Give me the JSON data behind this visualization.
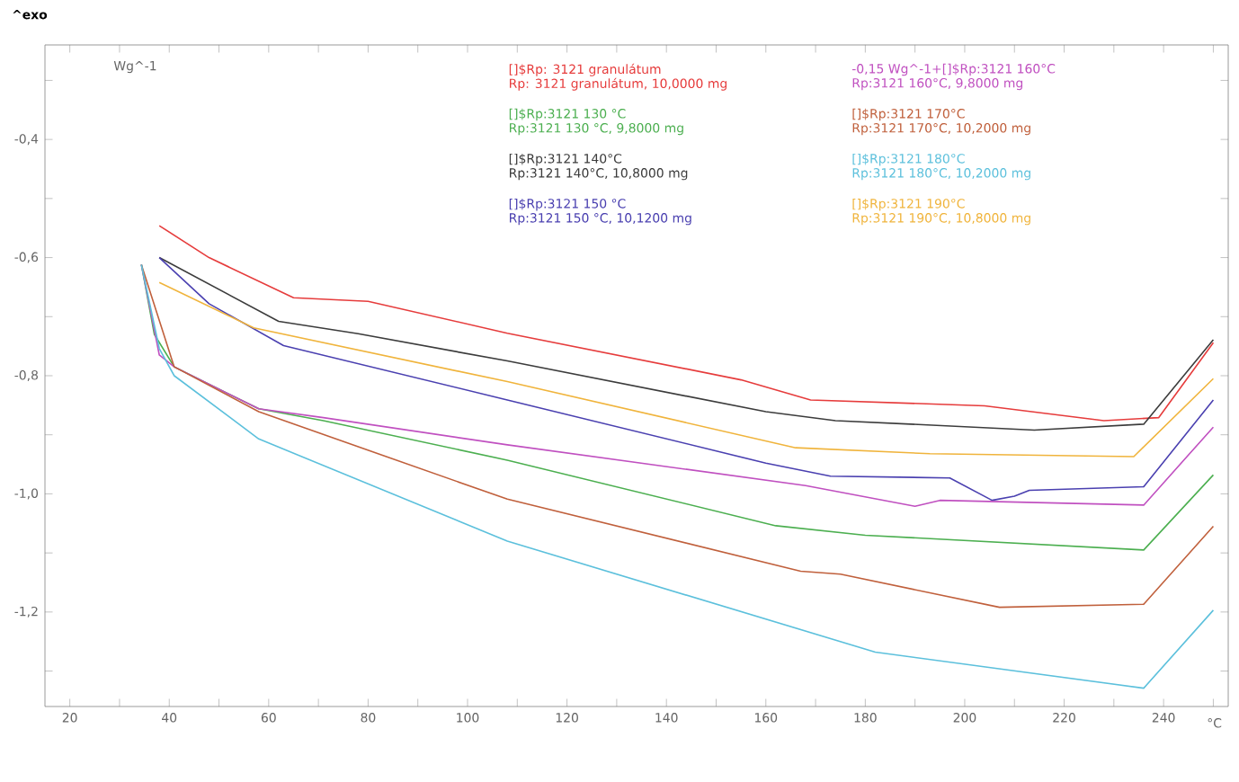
{
  "chart_data": {
    "type": "line",
    "title": "^exo",
    "ylabel": "Wg^-1",
    "xlabel": "°C",
    "xlim": [
      15,
      253
    ],
    "ylim": [
      -1.36,
      -0.24
    ],
    "xticks": [
      20,
      {
        "value": 30,
        "label": null
      },
      40,
      {
        "value": 50,
        "label": null
      },
      60,
      {
        "value": 70,
        "label": null
      },
      80,
      {
        "value": 90,
        "label": null
      },
      100,
      {
        "value": 110,
        "label": null
      },
      120,
      {
        "value": 130,
        "label": null
      },
      140,
      {
        "value": 150,
        "label": null
      },
      160,
      {
        "value": 170,
        "label": null
      },
      180,
      {
        "value": 190,
        "label": null
      },
      200,
      {
        "value": 210,
        "label": null
      },
      220,
      {
        "value": 230,
        "label": null
      },
      240,
      {
        "value": 250,
        "label": null
      }
    ],
    "yticks": [
      {
        "value": -1.3,
        "label": null
      },
      {
        "value": -1.2,
        "label": "-1,2"
      },
      {
        "value": -1.1,
        "label": null
      },
      {
        "value": -1.0,
        "label": "-1,0"
      },
      {
        "value": -0.9,
        "label": null
      },
      {
        "value": -0.8,
        "label": "-0,8"
      },
      {
        "value": -0.7,
        "label": null
      },
      {
        "value": -0.6,
        "label": "-0,6"
      },
      {
        "value": -0.5,
        "label": null
      },
      {
        "value": -0.4,
        "label": "-0,4"
      },
      {
        "value": -0.3,
        "label": null
      }
    ],
    "legend": "top",
    "marker": "none",
    "line_style": "solid",
    "grid": false,
    "series": [
      {
        "name": "[]$Rp: 3121 granulátum",
        "color": "#e63c3c",
        "x": [
          38,
          48,
          65,
          80,
          108,
          155,
          169,
          204,
          228,
          239,
          250
        ],
        "values": [
          -0.546,
          -0.6,
          -0.668,
          -0.674,
          -0.728,
          -0.807,
          -0.841,
          -0.851,
          -0.876,
          -0.871,
          -0.744
        ]
      },
      {
        "name": "[]$Rp:3121 130 °C",
        "color": "#4caf50",
        "x": [
          34.4,
          37,
          41,
          58,
          71,
          108,
          162,
          180,
          236,
          250
        ],
        "values": [
          -0.612,
          -0.73,
          -0.785,
          -0.856,
          -0.876,
          -0.943,
          -1.054,
          -1.07,
          -1.095,
          -0.968
        ]
      },
      {
        "name": "[]$Rp:3121 140°C",
        "color": "#3c3c3c",
        "x": [
          38,
          62,
          78,
          108,
          160,
          174,
          214,
          236,
          250
        ],
        "values": [
          -0.6,
          -0.708,
          -0.729,
          -0.775,
          -0.861,
          -0.876,
          -0.892,
          -0.882,
          -0.739
        ]
      },
      {
        "name": "[]$Rp:3121 150 °C",
        "color": "#4a40b0",
        "x": [
          38,
          48,
          63,
          108,
          160,
          173,
          197,
          205.5,
          210,
          213,
          236,
          250
        ],
        "values": [
          -0.6,
          -0.678,
          -0.749,
          -0.841,
          -0.948,
          -0.97,
          -0.973,
          -1.011,
          -1.004,
          -0.994,
          -0.988,
          -0.841
        ]
      },
      {
        "name": "-0,15 Wg^-1+[]$Rp:3121 160°C",
        "color": "#c050c0",
        "x": [
          34.4,
          38,
          41,
          58,
          71,
          108,
          168,
          190,
          195,
          236,
          250
        ],
        "values": [
          -0.612,
          -0.765,
          -0.785,
          -0.856,
          -0.871,
          -0.917,
          -0.986,
          -1.021,
          -1.011,
          -1.019,
          -0.887
        ]
      },
      {
        "name": "[]$Rp:3121 170°C",
        "color": "#c0603c",
        "x": [
          34.4,
          41,
          58,
          108,
          167,
          175,
          207,
          236,
          250
        ],
        "values": [
          -0.612,
          -0.785,
          -0.861,
          -1.009,
          -1.131,
          -1.136,
          -1.192,
          -1.187,
          -1.055
        ]
      },
      {
        "name": "[]$Rp:3121 180°C",
        "color": "#5cc0dc",
        "x": [
          34.4,
          38,
          41,
          58,
          108,
          182,
          236,
          250
        ],
        "values": [
          -0.612,
          -0.754,
          -0.8,
          -0.907,
          -1.08,
          -1.268,
          -1.329,
          -1.197
        ]
      },
      {
        "name": "[]$Rp:3121 190°C",
        "color": "#f0b43c",
        "x": [
          38,
          57,
          108,
          166,
          193,
          234,
          250
        ],
        "values": [
          -0.642,
          -0.719,
          -0.81,
          -0.922,
          -0.932,
          -0.937,
          -0.805
        ]
      }
    ],
    "annotations": [
      "Rp: 3121 granulátum, 10,0000 mg",
      "Rp:3121 130 °C, 9,8000 mg",
      "Rp:3121 140°C, 10,8000 mg",
      "Rp:3121 150 °C, 10,1200 mg",
      "Rp:3121 160°C, 9,8000 mg",
      "Rp:3121 170°C, 10,2000 mg",
      "Rp:3121 180°C, 10,2000 mg",
      "Rp:3121 190°C, 10,8000 mg"
    ]
  }
}
